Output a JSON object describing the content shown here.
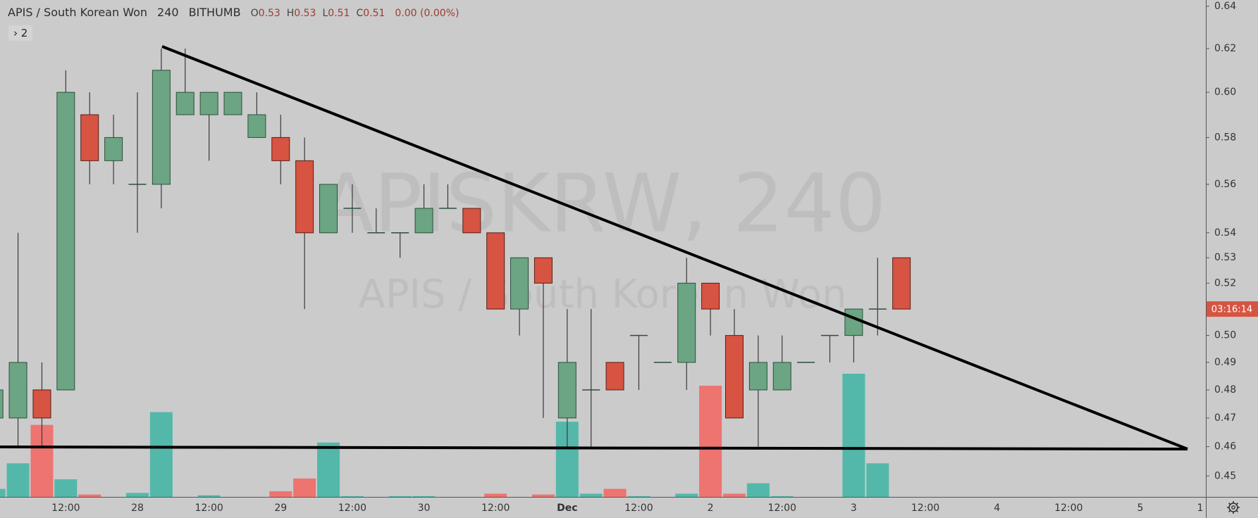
{
  "chart_data": {
    "type": "candlestick",
    "header": {
      "symbol": "APIS / South Korean Won",
      "interval": "240",
      "exchange": "BITHUMB",
      "ohlc": [
        {
          "label": "O",
          "value": "0.53"
        },
        {
          "label": "H",
          "value": "0.53"
        },
        {
          "label": "L",
          "value": "0.51"
        },
        {
          "label": "C",
          "value": "0.51"
        }
      ],
      "change": "0.00 (0.00%)"
    },
    "legend_toggle": "› 2",
    "watermark": {
      "title": "APISKRW, 240",
      "subtitle": "APIS / South Korean Won"
    },
    "countdown": "03:16:14",
    "categories": [
      null,
      null,
      null,
      "12:00",
      null,
      null,
      "28",
      null,
      null,
      "12:00",
      null,
      null,
      "29",
      null,
      null,
      "12:00",
      null,
      null,
      "30",
      null,
      null,
      "12:00",
      null,
      null,
      "Dec",
      null,
      null,
      "12:00",
      null,
      null,
      "2",
      null,
      null,
      "12:00",
      null,
      null,
      "3",
      null,
      null,
      "12:00",
      null,
      null,
      "4",
      null,
      null,
      "12:00",
      null,
      null,
      "5",
      null,
      null,
      "1"
    ],
    "open": [
      0.47,
      0.47,
      0.48,
      0.48,
      0.59,
      0.57,
      0.56,
      0.56,
      0.59,
      0.59,
      0.59,
      0.58,
      0.58,
      0.57,
      0.54,
      0.55,
      0.54,
      0.54,
      0.54,
      0.55,
      0.55,
      0.54,
      0.51,
      0.53,
      0.47,
      0.48,
      0.49,
      0.5,
      0.49,
      0.49,
      0.52,
      0.5,
      0.48,
      0.48,
      0.49,
      0.5,
      0.5,
      0.51,
      0.53,
      null,
      null,
      null,
      null,
      null,
      null,
      null,
      null,
      null,
      null,
      null,
      null,
      null
    ],
    "high": [
      0.48,
      0.54,
      0.49,
      0.61,
      0.6,
      0.59,
      0.6,
      0.62,
      0.62,
      0.6,
      0.6,
      0.6,
      0.59,
      0.58,
      0.56,
      0.56,
      0.55,
      0.54,
      0.56,
      0.56,
      0.55,
      0.54,
      0.53,
      0.53,
      0.51,
      0.51,
      0.49,
      0.5,
      0.49,
      0.53,
      0.52,
      0.51,
      0.5,
      0.5,
      0.49,
      0.5,
      0.51,
      0.53,
      0.53,
      null,
      null,
      null,
      null,
      null,
      null,
      null,
      null,
      null,
      null,
      null,
      null,
      null
    ],
    "low": [
      0.47,
      0.46,
      0.46,
      0.48,
      0.56,
      0.56,
      0.54,
      0.55,
      0.59,
      0.57,
      0.59,
      0.58,
      0.56,
      0.51,
      0.54,
      0.54,
      0.54,
      0.53,
      0.54,
      0.55,
      0.54,
      0.51,
      0.5,
      0.47,
      0.46,
      0.46,
      0.48,
      0.48,
      0.49,
      0.48,
      0.5,
      0.47,
      0.46,
      0.48,
      0.49,
      0.49,
      0.49,
      0.5,
      0.51,
      null,
      null,
      null,
      null,
      null,
      null,
      null,
      null,
      null,
      null,
      null,
      null,
      null
    ],
    "close": [
      0.48,
      0.49,
      0.47,
      0.6,
      0.57,
      0.58,
      0.56,
      0.61,
      0.6,
      0.6,
      0.6,
      0.59,
      0.57,
      0.54,
      0.56,
      0.55,
      0.54,
      0.54,
      0.55,
      0.55,
      0.54,
      0.51,
      0.53,
      0.52,
      0.49,
      0.48,
      0.48,
      0.5,
      0.49,
      0.52,
      0.51,
      0.47,
      0.49,
      0.49,
      0.49,
      0.5,
      0.51,
      0.51,
      0.51,
      null,
      null,
      null,
      null,
      null,
      null,
      null,
      null,
      null,
      null,
      null,
      null,
      null
    ],
    "volume": [
      10,
      42,
      90,
      22,
      3,
      0,
      5,
      106,
      0,
      2,
      0,
      0,
      7,
      23,
      68,
      1,
      0,
      1,
      1,
      0,
      0,
      4,
      0,
      3,
      94,
      4,
      10,
      1,
      0,
      4,
      139,
      4,
      17,
      1,
      0,
      0,
      154,
      42,
      0,
      null,
      null,
      null,
      null,
      null,
      null,
      null,
      null,
      null,
      null,
      null,
      null,
      null
    ],
    "up_color": "#6ba583",
    "down_color": "#d75442",
    "volume_up_color": "#53b8aa",
    "volume_down_color": "#ee7470",
    "log_scale": true,
    "grid": false,
    "ylim": [
      0.443,
      0.643
    ],
    "yticks": [
      0.45,
      0.46,
      0.47,
      0.48,
      0.49,
      {
        "value": 0.5,
        "label": "0.50"
      },
      0.52,
      0.53,
      0.54,
      0.56,
      0.58,
      {
        "value": 0.6,
        "label": "0.60"
      },
      0.62,
      0.64
    ]
  }
}
